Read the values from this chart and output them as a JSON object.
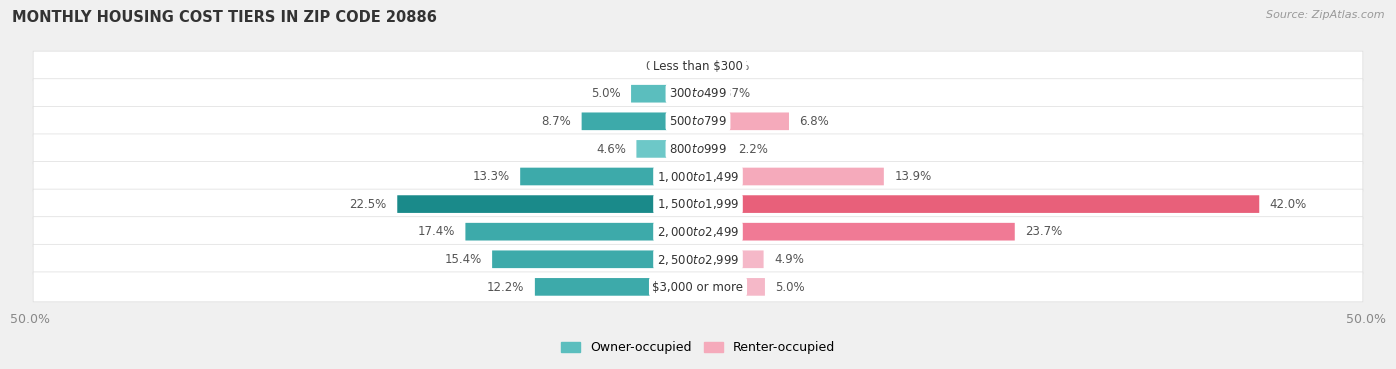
{
  "title": "MONTHLY HOUSING COST TIERS IN ZIP CODE 20886",
  "source": "Source: ZipAtlas.com",
  "categories": [
    "Less than $300",
    "$300 to $499",
    "$500 to $799",
    "$800 to $999",
    "$1,000 to $1,499",
    "$1,500 to $1,999",
    "$2,000 to $2,499",
    "$2,500 to $2,999",
    "$3,000 or more"
  ],
  "owner_values": [
    0.9,
    5.0,
    8.7,
    4.6,
    13.3,
    22.5,
    17.4,
    15.4,
    12.2
  ],
  "renter_values": [
    0.24,
    0.37,
    6.8,
    2.2,
    13.9,
    42.0,
    23.7,
    4.9,
    5.0
  ],
  "owner_colors": [
    "#8DD4D4",
    "#5BBEBE",
    "#3DAAAA",
    "#6DC8C8",
    "#3DAAAA",
    "#1A8A8A",
    "#3DAAAA",
    "#3DAAAA",
    "#3DAAAA"
  ],
  "renter_colors": [
    "#F5B8C8",
    "#F5B8C8",
    "#F5AABB",
    "#F5AABB",
    "#F5AABB",
    "#E8607A",
    "#F07A95",
    "#F5B8C8",
    "#F5B8C8"
  ],
  "owner_label": "Owner-occupied",
  "renter_label": "Renter-occupied",
  "owner_legend_color": "#5BBEBE",
  "renter_legend_color": "#F5AABB",
  "xlim": 50.0,
  "axis_label_left": "50.0%",
  "axis_label_right": "50.0%",
  "bg_color": "#f0f0f0",
  "row_bg": "#f8f8f8",
  "title_fontsize": 10.5,
  "source_fontsize": 8,
  "bar_fontsize": 8.5,
  "cat_fontsize": 8.5,
  "legend_fontsize": 9,
  "axis_tick_fontsize": 9
}
